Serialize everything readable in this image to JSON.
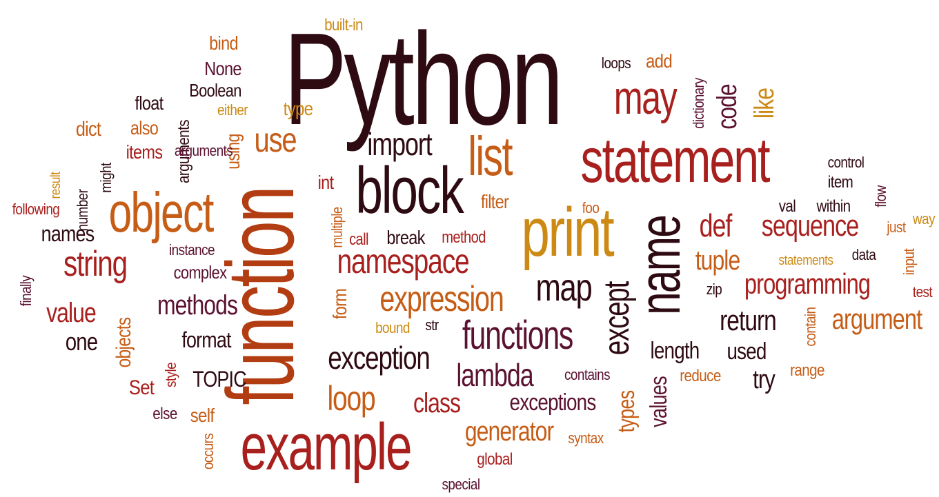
{
  "colors": {
    "dark": "#2e0a12",
    "red": "#a8201e",
    "brown": "#b33d12",
    "orange": "#c65d16",
    "gold": "#cc8a14",
    "plum": "#5b1230"
  },
  "words": [
    {
      "text": "Python",
      "color": "dark",
      "orient": "h"
    },
    {
      "text": "function",
      "color": "brown",
      "orient": "v"
    },
    {
      "text": "statement",
      "color": "red",
      "orient": "h"
    },
    {
      "text": "example",
      "color": "red",
      "orient": "h"
    },
    {
      "text": "print",
      "color": "gold",
      "orient": "h"
    },
    {
      "text": "block",
      "color": "dark",
      "orient": "h"
    },
    {
      "text": "object",
      "color": "orange",
      "orient": "h"
    },
    {
      "text": "name",
      "color": "dark",
      "orient": "v"
    },
    {
      "text": "may",
      "color": "red",
      "orient": "h"
    },
    {
      "text": "list",
      "color": "orange",
      "orient": "h"
    },
    {
      "text": "use",
      "color": "orange",
      "orient": "h"
    },
    {
      "text": "import",
      "color": "dark",
      "orient": "h"
    },
    {
      "text": "namespace",
      "color": "red",
      "orient": "h"
    },
    {
      "text": "expression",
      "color": "orange",
      "orient": "h"
    },
    {
      "text": "functions",
      "color": "plum",
      "orient": "h"
    },
    {
      "text": "string",
      "color": "red",
      "orient": "h"
    },
    {
      "text": "map",
      "color": "dark",
      "orient": "h"
    },
    {
      "text": "except",
      "color": "dark",
      "orient": "v"
    },
    {
      "text": "sequence",
      "color": "red",
      "orient": "h"
    },
    {
      "text": "programming",
      "color": "red",
      "orient": "h"
    },
    {
      "text": "argument",
      "color": "orange",
      "orient": "h"
    },
    {
      "text": "return",
      "color": "dark",
      "orient": "h"
    },
    {
      "text": "exception",
      "color": "dark",
      "orient": "h"
    },
    {
      "text": "lambda",
      "color": "plum",
      "orient": "h"
    },
    {
      "text": "loop",
      "color": "orange",
      "orient": "h"
    },
    {
      "text": "class",
      "color": "red",
      "orient": "h"
    },
    {
      "text": "exceptions",
      "color": "plum",
      "orient": "h"
    },
    {
      "text": "generator",
      "color": "orange",
      "orient": "h"
    },
    {
      "text": "methods",
      "color": "plum",
      "orient": "h"
    },
    {
      "text": "value",
      "color": "red",
      "orient": "h"
    },
    {
      "text": "one",
      "color": "dark",
      "orient": "h"
    },
    {
      "text": "def",
      "color": "red",
      "orient": "h"
    },
    {
      "text": "tuple",
      "color": "orange",
      "orient": "h"
    },
    {
      "text": "code",
      "color": "plum",
      "orient": "v"
    },
    {
      "text": "like",
      "color": "gold",
      "orient": "v"
    },
    {
      "text": "length",
      "color": "dark",
      "orient": "h"
    },
    {
      "text": "values",
      "color": "plum",
      "orient": "v"
    },
    {
      "text": "types",
      "color": "orange",
      "orient": "v"
    },
    {
      "text": "used",
      "color": "dark",
      "orient": "h"
    },
    {
      "text": "try",
      "color": "dark",
      "orient": "h"
    },
    {
      "text": "format",
      "color": "dark",
      "orient": "h"
    },
    {
      "text": "TOPIC",
      "color": "dark",
      "orient": "h"
    },
    {
      "text": "complex",
      "color": "plum",
      "orient": "h"
    },
    {
      "text": "names",
      "color": "dark",
      "orient": "h"
    },
    {
      "text": "objects",
      "color": "orange",
      "orient": "v"
    },
    {
      "text": "using",
      "color": "orange",
      "orient": "v"
    },
    {
      "text": "filter",
      "color": "orange",
      "orient": "h"
    },
    {
      "text": "int",
      "color": "red",
      "orient": "h"
    },
    {
      "text": "form",
      "color": "orange",
      "orient": "v"
    },
    {
      "text": "break",
      "color": "dark",
      "orient": "h"
    },
    {
      "text": "call",
      "color": "red",
      "orient": "h"
    },
    {
      "text": "method",
      "color": "red",
      "orient": "h"
    },
    {
      "text": "multiple",
      "color": "orange",
      "orient": "v"
    },
    {
      "text": "also",
      "color": "orange",
      "orient": "h"
    },
    {
      "text": "dict",
      "color": "orange",
      "orient": "h"
    },
    {
      "text": "items",
      "color": "red",
      "orient": "h"
    },
    {
      "text": "float",
      "color": "dark",
      "orient": "h"
    },
    {
      "text": "type",
      "color": "gold",
      "orient": "h"
    },
    {
      "text": "either",
      "color": "gold",
      "orient": "h"
    },
    {
      "text": "Boolean",
      "color": "dark",
      "orient": "h"
    },
    {
      "text": "None",
      "color": "plum",
      "orient": "h"
    },
    {
      "text": "bind",
      "color": "orange",
      "orient": "h"
    },
    {
      "text": "built-in",
      "color": "gold",
      "orient": "h"
    },
    {
      "text": "loops",
      "color": "dark",
      "orient": "h"
    },
    {
      "text": "add",
      "color": "orange",
      "orient": "h"
    },
    {
      "text": "dictionary",
      "color": "plum",
      "orient": "v"
    },
    {
      "text": "control",
      "color": "dark",
      "orient": "h"
    },
    {
      "text": "item",
      "color": "dark",
      "orient": "h"
    },
    {
      "text": "flow",
      "color": "plum",
      "orient": "v"
    },
    {
      "text": "val",
      "color": "dark",
      "orient": "h"
    },
    {
      "text": "within",
      "color": "dark",
      "orient": "h"
    },
    {
      "text": "just",
      "color": "orange",
      "orient": "h"
    },
    {
      "text": "way",
      "color": "gold",
      "orient": "h"
    },
    {
      "text": "statements",
      "color": "gold",
      "orient": "h"
    },
    {
      "text": "data",
      "color": "dark",
      "orient": "h"
    },
    {
      "text": "input",
      "color": "orange",
      "orient": "v"
    },
    {
      "text": "test",
      "color": "red",
      "orient": "h"
    },
    {
      "text": "zip",
      "color": "dark",
      "orient": "h"
    },
    {
      "text": "contain",
      "color": "orange",
      "orient": "v"
    },
    {
      "text": "range",
      "color": "orange",
      "orient": "h"
    },
    {
      "text": "reduce",
      "color": "orange",
      "orient": "h"
    },
    {
      "text": "contains",
      "color": "plum",
      "orient": "h"
    },
    {
      "text": "syntax",
      "color": "orange",
      "orient": "h"
    },
    {
      "text": "global",
      "color": "red",
      "orient": "h"
    },
    {
      "text": "special",
      "color": "plum",
      "orient": "h"
    },
    {
      "text": "occurs",
      "color": "orange",
      "orient": "v"
    },
    {
      "text": "self",
      "color": "orange",
      "orient": "h"
    },
    {
      "text": "else",
      "color": "plum",
      "orient": "h"
    },
    {
      "text": "Set",
      "color": "red",
      "orient": "h"
    },
    {
      "text": "style",
      "color": "red",
      "orient": "v"
    },
    {
      "text": "bound",
      "color": "gold",
      "orient": "h"
    },
    {
      "text": "str",
      "color": "dark",
      "orient": "h"
    },
    {
      "text": "foo",
      "color": "orange",
      "orient": "h"
    },
    {
      "text": "instance",
      "color": "plum",
      "orient": "h"
    },
    {
      "text": "following",
      "color": "red",
      "orient": "h"
    },
    {
      "text": "number",
      "color": "dark",
      "orient": "v"
    },
    {
      "text": "result",
      "color": "gold",
      "orient": "v"
    },
    {
      "text": "might",
      "color": "dark",
      "orient": "v"
    },
    {
      "text": "arguments",
      "color": "dark",
      "orient": "v"
    },
    {
      "text": "arguments",
      "color": "plum",
      "orient": "h"
    },
    {
      "text": "finally",
      "color": "plum",
      "orient": "v"
    }
  ]
}
